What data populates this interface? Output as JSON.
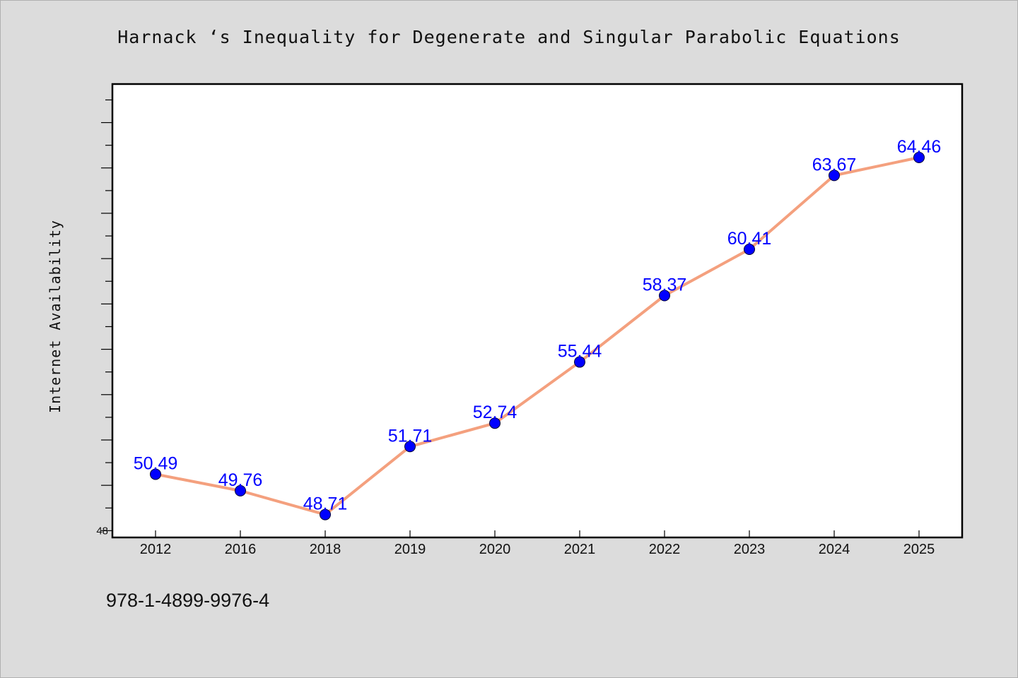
{
  "chart_data": {
    "type": "line",
    "title": "Harnack ‘s Inequality for Degenerate and Singular Parabolic Equations",
    "xlabel": "",
    "ylabel": "Internet Availability",
    "categories": [
      "2012",
      "2016",
      "2018",
      "2019",
      "2020",
      "2021",
      "2022",
      "2023",
      "2024",
      "2025"
    ],
    "series": [
      {
        "values": [
          50.49,
          49.76,
          48.71,
          51.71,
          52.74,
          55.44,
          58.37,
          60.41,
          63.67,
          64.46
        ],
        "labels": [
          "50.49",
          "49.76",
          "48.71",
          "51.71",
          "52.74",
          "55.44",
          "58.37",
          "60.41",
          "63.67",
          "64.46"
        ]
      }
    ],
    "ylim": [
      47.7,
      67.7
    ],
    "yticks": [
      "48"
    ],
    "grid": false,
    "legend": "none",
    "colors": {
      "line": "#f4a07e",
      "marker": "#0000ff",
      "label": "#0000ff",
      "background": "#dcdcdc",
      "plot_background": "#ffffff"
    }
  },
  "footer": {
    "isbn": "978-1-4899-9976-4"
  }
}
